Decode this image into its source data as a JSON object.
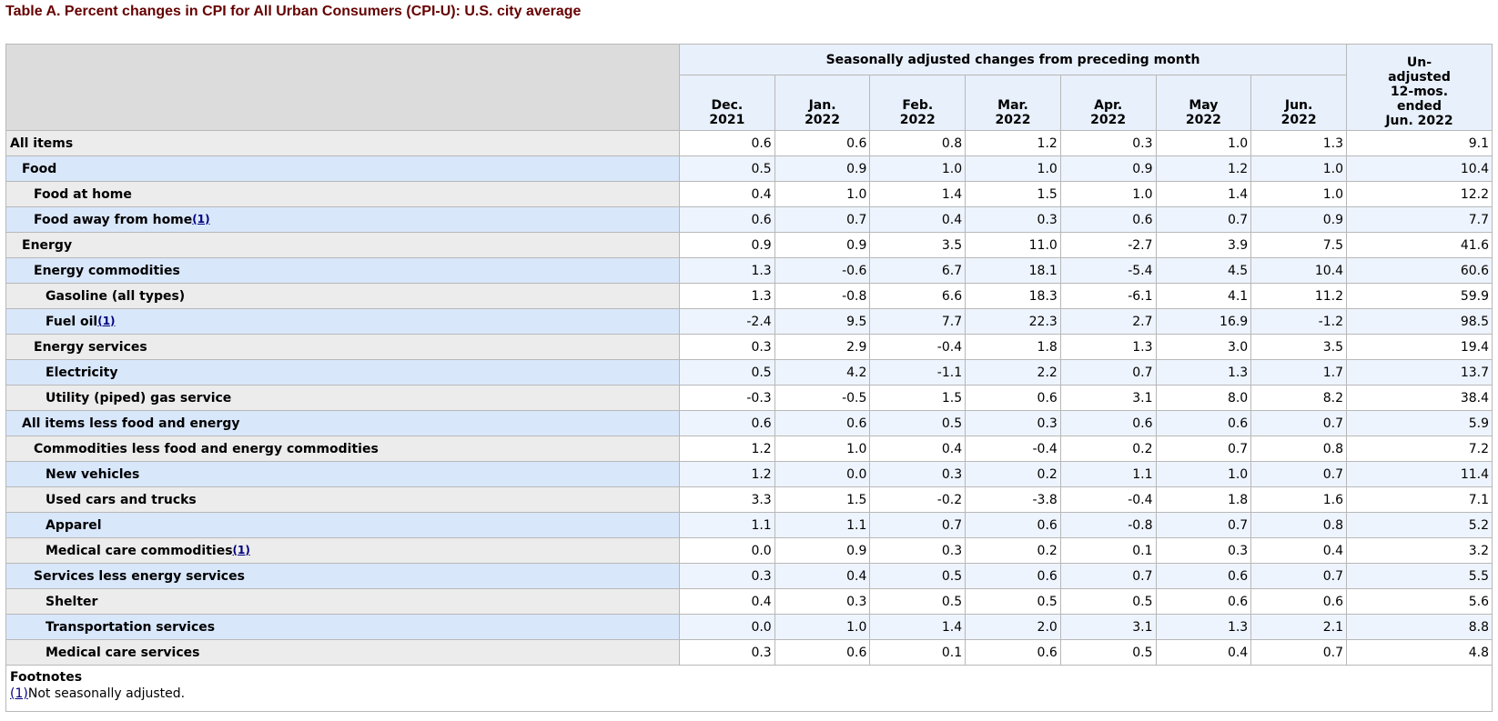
{
  "caption": "Table A. Percent changes in CPI for All Urban Consumers (CPI-U): U.S. city average",
  "header": {
    "group_label": "Seasonally adjusted changes from preceding month",
    "months": [
      {
        "line1": "Dec.",
        "line2": "2021"
      },
      {
        "line1": "Jan.",
        "line2": "2022"
      },
      {
        "line1": "Feb.",
        "line2": "2022"
      },
      {
        "line1": "Mar.",
        "line2": "2022"
      },
      {
        "line1": "Apr.",
        "line2": "2022"
      },
      {
        "line1": "May",
        "line2": "2022"
      },
      {
        "line1": "Jun.",
        "line2": "2022"
      }
    ],
    "unadjusted": [
      "Un-",
      "adjusted",
      "12-mos.",
      "ended",
      "Jun. 2022"
    ]
  },
  "rows": [
    {
      "label": "All items",
      "level": 0,
      "fn": "",
      "values": [
        "0.6",
        "0.6",
        "0.8",
        "1.2",
        "0.3",
        "1.0",
        "1.3",
        "9.1"
      ]
    },
    {
      "label": "Food",
      "level": 1,
      "fn": "",
      "values": [
        "0.5",
        "0.9",
        "1.0",
        "1.0",
        "0.9",
        "1.2",
        "1.0",
        "10.4"
      ]
    },
    {
      "label": "Food at home",
      "level": 2,
      "fn": "",
      "values": [
        "0.4",
        "1.0",
        "1.4",
        "1.5",
        "1.0",
        "1.4",
        "1.0",
        "12.2"
      ]
    },
    {
      "label": "Food away from home",
      "level": 2,
      "fn": "(1)",
      "values": [
        "0.6",
        "0.7",
        "0.4",
        "0.3",
        "0.6",
        "0.7",
        "0.9",
        "7.7"
      ]
    },
    {
      "label": "Energy",
      "level": 1,
      "fn": "",
      "values": [
        "0.9",
        "0.9",
        "3.5",
        "11.0",
        "-2.7",
        "3.9",
        "7.5",
        "41.6"
      ]
    },
    {
      "label": "Energy commodities",
      "level": 2,
      "fn": "",
      "values": [
        "1.3",
        "-0.6",
        "6.7",
        "18.1",
        "-5.4",
        "4.5",
        "10.4",
        "60.6"
      ]
    },
    {
      "label": "Gasoline (all types)",
      "level": 3,
      "fn": "",
      "values": [
        "1.3",
        "-0.8",
        "6.6",
        "18.3",
        "-6.1",
        "4.1",
        "11.2",
        "59.9"
      ]
    },
    {
      "label": "Fuel oil",
      "level": 3,
      "fn": "(1)",
      "values": [
        "-2.4",
        "9.5",
        "7.7",
        "22.3",
        "2.7",
        "16.9",
        "-1.2",
        "98.5"
      ]
    },
    {
      "label": "Energy services",
      "level": 2,
      "fn": "",
      "values": [
        "0.3",
        "2.9",
        "-0.4",
        "1.8",
        "1.3",
        "3.0",
        "3.5",
        "19.4"
      ]
    },
    {
      "label": "Electricity",
      "level": 3,
      "fn": "",
      "values": [
        "0.5",
        "4.2",
        "-1.1",
        "2.2",
        "0.7",
        "1.3",
        "1.7",
        "13.7"
      ]
    },
    {
      "label": "Utility (piped) gas service",
      "level": 3,
      "fn": "",
      "values": [
        "-0.3",
        "-0.5",
        "1.5",
        "0.6",
        "3.1",
        "8.0",
        "8.2",
        "38.4"
      ]
    },
    {
      "label": "All items less food and energy",
      "level": 1,
      "fn": "",
      "values": [
        "0.6",
        "0.6",
        "0.5",
        "0.3",
        "0.6",
        "0.6",
        "0.7",
        "5.9"
      ]
    },
    {
      "label": "Commodities less food and energy commodities",
      "level": 2,
      "fn": "",
      "values": [
        "1.2",
        "1.0",
        "0.4",
        "-0.4",
        "0.2",
        "0.7",
        "0.8",
        "7.2"
      ]
    },
    {
      "label": "New vehicles",
      "level": 3,
      "fn": "",
      "values": [
        "1.2",
        "0.0",
        "0.3",
        "0.2",
        "1.1",
        "1.0",
        "0.7",
        "11.4"
      ]
    },
    {
      "label": "Used cars and trucks",
      "level": 3,
      "fn": "",
      "values": [
        "3.3",
        "1.5",
        "-0.2",
        "-3.8",
        "-0.4",
        "1.8",
        "1.6",
        "7.1"
      ]
    },
    {
      "label": "Apparel",
      "level": 3,
      "fn": "",
      "values": [
        "1.1",
        "1.1",
        "0.7",
        "0.6",
        "-0.8",
        "0.7",
        "0.8",
        "5.2"
      ]
    },
    {
      "label": "Medical care commodities",
      "level": 3,
      "fn": "(1)",
      "values": [
        "0.0",
        "0.9",
        "0.3",
        "0.2",
        "0.1",
        "0.3",
        "0.4",
        "3.2"
      ]
    },
    {
      "label": "Services less energy services",
      "level": 2,
      "fn": "",
      "values": [
        "0.3",
        "0.4",
        "0.5",
        "0.6",
        "0.7",
        "0.6",
        "0.7",
        "5.5"
      ]
    },
    {
      "label": "Shelter",
      "level": 3,
      "fn": "",
      "values": [
        "0.4",
        "0.3",
        "0.5",
        "0.5",
        "0.5",
        "0.6",
        "0.6",
        "5.6"
      ]
    },
    {
      "label": "Transportation services",
      "level": 3,
      "fn": "",
      "values": [
        "0.0",
        "1.0",
        "1.4",
        "2.0",
        "3.1",
        "1.3",
        "2.1",
        "8.8"
      ]
    },
    {
      "label": "Medical care services",
      "level": 3,
      "fn": "",
      "values": [
        "0.3",
        "0.6",
        "0.1",
        "0.6",
        "0.5",
        "0.4",
        "0.7",
        "4.8"
      ]
    }
  ],
  "footnotes": {
    "title": "Footnotes",
    "items": [
      {
        "ref": "(1)",
        "text": "Not seasonally adjusted."
      }
    ]
  },
  "colors": {
    "caption": "#660000",
    "link": "#00007f",
    "stripe_label": "#d9e7fb",
    "stripe_value": "#eef4fd",
    "plain_label": "#ececec",
    "header_bg": "#e8f0fc"
  }
}
